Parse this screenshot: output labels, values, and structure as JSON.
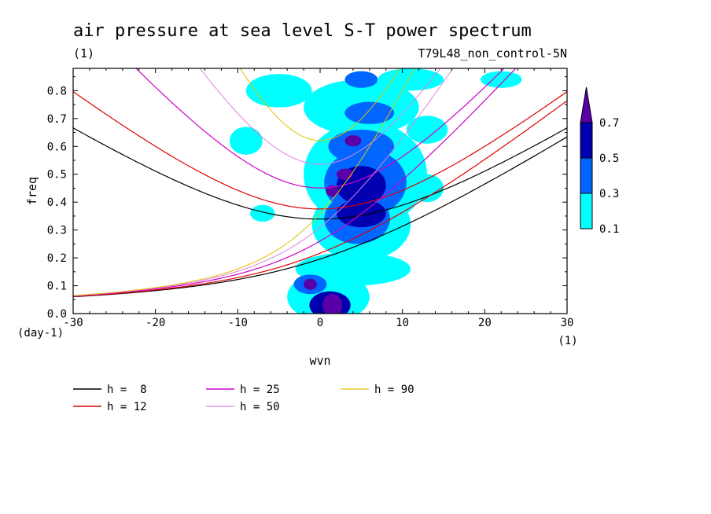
{
  "chart_data": {
    "type": "heatmap",
    "title": "air pressure at sea level S-T power spectrum",
    "subtitle_left": "(1)",
    "subtitle_right": "T79L48_non_control-5N",
    "xlabel": "wvn",
    "ylabel": "freq",
    "x_unit": "(1)",
    "y_unit": "(day-1)",
    "xlim": [
      -30,
      30
    ],
    "ylim": [
      0,
      0.88
    ],
    "xticks": [
      -30,
      -20,
      -10,
      0,
      10,
      20,
      30
    ],
    "xtick_labels": [
      "-30",
      "-20",
      "-10",
      "0",
      "10",
      "20",
      "30"
    ],
    "yticks": [
      0.0,
      0.1,
      0.2,
      0.3,
      0.4,
      0.5,
      0.6,
      0.7,
      0.8
    ],
    "ytick_labels": [
      "0.0",
      "0.1",
      "0.2",
      "0.3",
      "0.4",
      "0.5",
      "0.6",
      "0.7",
      "0.8"
    ],
    "colorbar": {
      "levels": [
        "0.1",
        "0.3",
        "0.5",
        "0.7"
      ],
      "colors": [
        "#00ffff",
        "#0066ff",
        "#0000b0",
        "#5a00a8"
      ]
    },
    "power_blobs": [
      {
        "x": 1.5,
        "y": 0.03,
        "rx": 1.2,
        "ry": 0.04,
        "level": 3
      },
      {
        "x": 1.2,
        "y": 0.03,
        "rx": 2.5,
        "ry": 0.05,
        "level": 2
      },
      {
        "x": 1.0,
        "y": 0.06,
        "rx": 5.0,
        "ry": 0.09,
        "level": 0
      },
      {
        "x": -1.2,
        "y": 0.105,
        "rx": 0.8,
        "ry": 0.02,
        "level": 3
      },
      {
        "x": -1.2,
        "y": 0.105,
        "rx": 2.0,
        "ry": 0.035,
        "level": 1
      },
      {
        "x": 4.0,
        "y": 0.16,
        "rx": 7.0,
        "ry": 0.06,
        "level": 0
      },
      {
        "x": 5.0,
        "y": 0.32,
        "rx": 6.0,
        "ry": 0.13,
        "level": 0
      },
      {
        "x": 4.5,
        "y": 0.34,
        "rx": 4.0,
        "ry": 0.09,
        "level": 1
      },
      {
        "x": 5.0,
        "y": 0.36,
        "rx": 3.0,
        "ry": 0.05,
        "level": 2
      },
      {
        "x": 5.5,
        "y": 0.5,
        "rx": 7.5,
        "ry": 0.19,
        "level": 0
      },
      {
        "x": 5.5,
        "y": 0.47,
        "rx": 5.0,
        "ry": 0.12,
        "level": 1
      },
      {
        "x": 5.0,
        "y": 0.46,
        "rx": 3.0,
        "ry": 0.07,
        "level": 2
      },
      {
        "x": 3.0,
        "y": 0.5,
        "rx": 1.0,
        "ry": 0.02,
        "level": 3
      },
      {
        "x": 1.5,
        "y": 0.44,
        "rx": 0.8,
        "ry": 0.02,
        "level": 3
      },
      {
        "x": 5.0,
        "y": 0.6,
        "rx": 4.0,
        "ry": 0.06,
        "level": 1
      },
      {
        "x": 4.0,
        "y": 0.62,
        "rx": 1.0,
        "ry": 0.02,
        "level": 3
      },
      {
        "x": 5.0,
        "y": 0.74,
        "rx": 7.0,
        "ry": 0.1,
        "level": 0
      },
      {
        "x": 6.0,
        "y": 0.72,
        "rx": 3.0,
        "ry": 0.04,
        "level": 1
      },
      {
        "x": -5.0,
        "y": 0.8,
        "rx": 4.0,
        "ry": 0.06,
        "level": 0
      },
      {
        "x": 11.0,
        "y": 0.84,
        "rx": 4.0,
        "ry": 0.04,
        "level": 0
      },
      {
        "x": -9.0,
        "y": 0.62,
        "rx": 2.0,
        "ry": 0.05,
        "level": 0
      },
      {
        "x": 13.0,
        "y": 0.66,
        "rx": 2.5,
        "ry": 0.05,
        "level": 0
      },
      {
        "x": 13.0,
        "y": 0.45,
        "rx": 2.0,
        "ry": 0.05,
        "level": 0
      },
      {
        "x": 5.0,
        "y": 0.84,
        "rx": 2.0,
        "ry": 0.03,
        "level": 1
      },
      {
        "x": 22.0,
        "y": 0.84,
        "rx": 2.5,
        "ry": 0.03,
        "level": 0
      },
      {
        "x": -7.0,
        "y": 0.36,
        "rx": 1.5,
        "ry": 0.03,
        "level": 0
      }
    ],
    "dispersion_curves": [
      {
        "name": "h =  8",
        "color": "#000000",
        "width": 1.2
      },
      {
        "name": "h = 12",
        "color": "#e00000",
        "width": 1.2
      },
      {
        "name": "h = 25",
        "color": "#d000c8",
        "width": 1.2
      },
      {
        "name": "h = 50",
        "color": "#e080e0",
        "width": 1
      },
      {
        "name": "h = 90",
        "color": "#e0c000",
        "width": 1
      }
    ]
  }
}
